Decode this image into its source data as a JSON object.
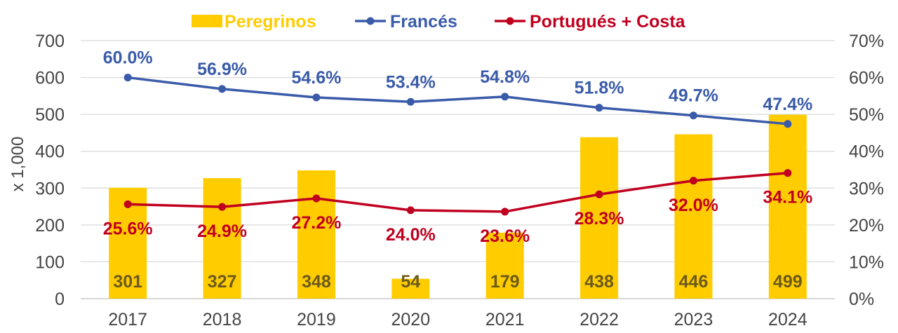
{
  "chart_data": {
    "type": "bar+line",
    "categories": [
      "2017",
      "2018",
      "2019",
      "2020",
      "2021",
      "2022",
      "2023",
      "2024"
    ],
    "bars": {
      "name": "Peregrinos",
      "values": [
        301,
        327,
        348,
        54,
        179,
        438,
        446,
        499
      ],
      "color": "#FFCC00",
      "label_color": "#6b5a1a"
    },
    "lines": [
      {
        "name": "Francés",
        "values": [
          60.0,
          56.9,
          54.6,
          53.4,
          54.8,
          51.8,
          49.7,
          47.4
        ],
        "labels": [
          "60.0%",
          "56.9%",
          "54.6%",
          "53.4%",
          "54.8%",
          "51.8%",
          "49.7%",
          "47.4%"
        ],
        "color": "#3A5BA9",
        "label_position": "above"
      },
      {
        "name": "Portugués + Costa",
        "values": [
          25.6,
          24.9,
          27.2,
          24.0,
          23.6,
          28.3,
          32.0,
          34.1
        ],
        "labels": [
          "25.6%",
          "24.9%",
          "27.2%",
          "24.0%",
          "23.6%",
          "28.3%",
          "32.0%",
          "34.1%"
        ],
        "color": "#C0001F",
        "label_position": "below"
      }
    ],
    "ylabel": "x 1,000",
    "ylim": [
      0,
      700
    ],
    "yticks": [
      "0",
      "100",
      "200",
      "300",
      "400",
      "500",
      "600",
      "700"
    ],
    "y2lim": [
      0,
      70
    ],
    "y2ticks": [
      "0%",
      "10%",
      "20%",
      "30%",
      "40%",
      "50%",
      "60%",
      "70%"
    ],
    "grid": true,
    "legend": "top-center"
  }
}
